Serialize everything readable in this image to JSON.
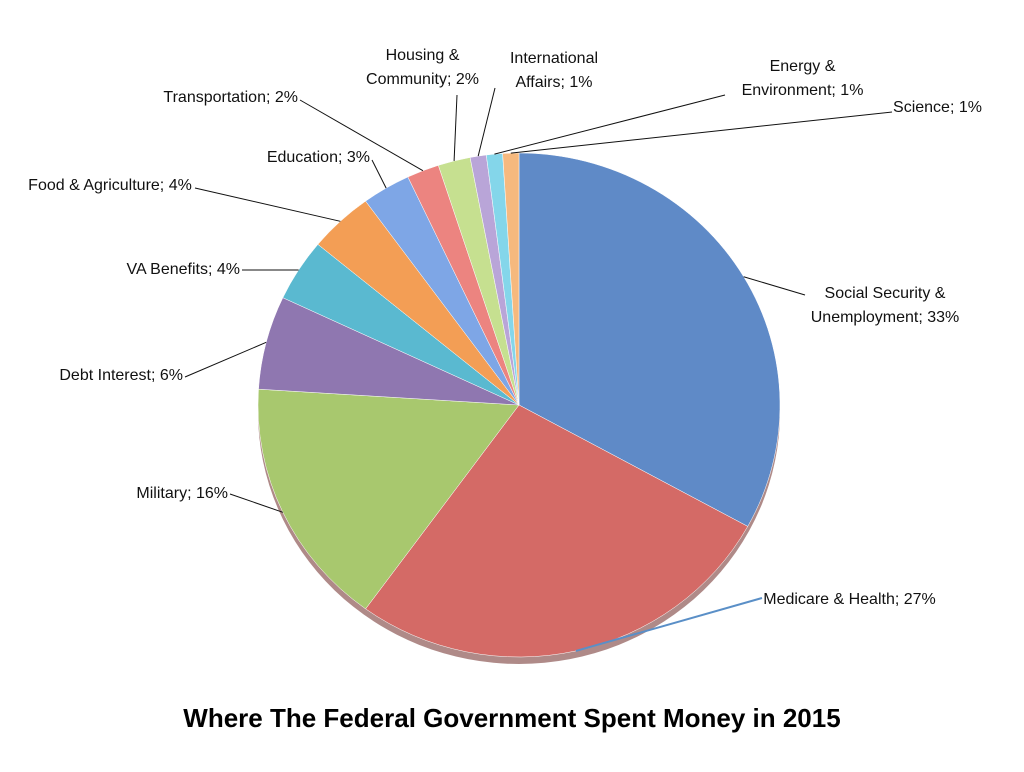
{
  "chart_data": {
    "type": "pie",
    "title": "Where The Federal Government Spent Money in 2015",
    "categories": [
      "Social Security & Unemployment; 33%",
      "Medicare & Health; 27%",
      "Military; 16%",
      "Debt Interest; 6%",
      "VA Benefits; 4%",
      "Food & Agriculture; 4%",
      "Education; 3%",
      "Transportation; 2%",
      "Housing & Community; 2%",
      "International Affairs; 1%",
      "Energy & Environment; 1%",
      "Science; 1%"
    ],
    "values": [
      33,
      27,
      16,
      6,
      4,
      4,
      3,
      2,
      2,
      1,
      1,
      1
    ],
    "colors": [
      "#5f8ac7",
      "#d46a66",
      "#a8c86e",
      "#8f77b0",
      "#5ab9d0",
      "#f39e55",
      "#7ea6e6",
      "#ec8480",
      "#c6e090",
      "#b9a5d8",
      "#84d6ea",
      "#f6b97e"
    ]
  }
}
